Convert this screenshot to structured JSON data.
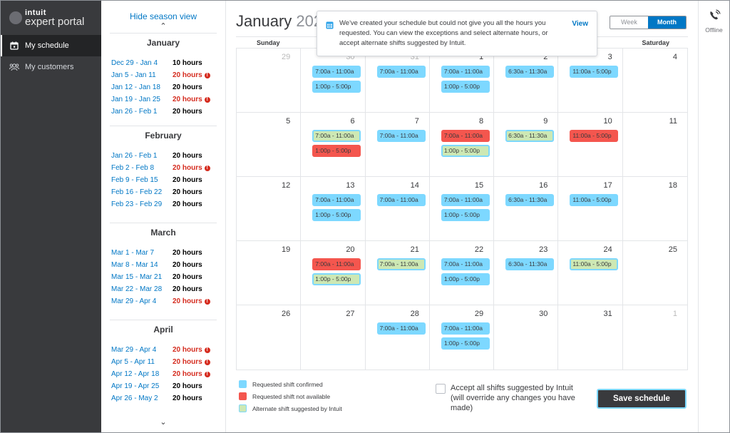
{
  "brand": {
    "top": "intuit",
    "bottom": "expert portal"
  },
  "nav": {
    "items": [
      {
        "label": "My schedule",
        "icon": "calendar-icon",
        "active": true
      },
      {
        "label": "My customers",
        "icon": "people-icon",
        "active": false
      }
    ]
  },
  "season": {
    "hide_label": "Hide season view",
    "months": [
      {
        "name": "January",
        "weeks": [
          {
            "range": "Dec 29 - Jan 4",
            "hours": "10 hours",
            "warn": false
          },
          {
            "range": "Jan 5 - Jan 11",
            "hours": "20 hours",
            "warn": true
          },
          {
            "range": "Jan 12 - Jan 18",
            "hours": "20 hours",
            "warn": false
          },
          {
            "range": "Jan 19 - Jan 25",
            "hours": "20 hours",
            "warn": true
          },
          {
            "range": "Jan 26 - Feb 1",
            "hours": "20 hours",
            "warn": false
          }
        ]
      },
      {
        "name": "February",
        "weeks": [
          {
            "range": "Jan 26 - Feb 1",
            "hours": "20 hours",
            "warn": false
          },
          {
            "range": "Feb 2 - Feb 8",
            "hours": "20 hours",
            "warn": true
          },
          {
            "range": "Feb 9 - Feb 15",
            "hours": "20 hours",
            "warn": false
          },
          {
            "range": "Feb 16 - Feb 22",
            "hours": "20 hours",
            "warn": false
          },
          {
            "range": "Feb 23 - Feb 29",
            "hours": "20 hours",
            "warn": false
          }
        ]
      },
      {
        "name": "March",
        "weeks": [
          {
            "range": "Mar 1 - Mar 7",
            "hours": "20 hours",
            "warn": false
          },
          {
            "range": "Mar 8 - Mar 14",
            "hours": "20 hours",
            "warn": false
          },
          {
            "range": "Mar 15 - Mar 21",
            "hours": "20 hours",
            "warn": false
          },
          {
            "range": "Mar 22 - Mar 28",
            "hours": "20 hours",
            "warn": false
          },
          {
            "range": "Mar 29 - Apr 4",
            "hours": "20 hours",
            "warn": true
          }
        ]
      },
      {
        "name": "April",
        "weeks": [
          {
            "range": "Mar 29 - Apr 4",
            "hours": "20 hours",
            "warn": true
          },
          {
            "range": "Apr 5 - Apr 11",
            "hours": "20 hours",
            "warn": true
          },
          {
            "range": "Apr 12 - Apr 18",
            "hours": "20 hours",
            "warn": true
          },
          {
            "range": "Apr 19 - Apr 25",
            "hours": "20 hours",
            "warn": false
          },
          {
            "range": "Apr 26 - May 2",
            "hours": "20 hours",
            "warn": false
          }
        ]
      }
    ]
  },
  "calendar": {
    "title_month": "January",
    "title_year_partial": "202",
    "behind_link_partial": "ge",
    "view_toggle": {
      "week": "Week",
      "month": "Month",
      "selected": "Month"
    },
    "days_of_week": [
      "Sunday",
      "",
      "",
      "",
      "",
      "",
      "Saturday"
    ],
    "weeks": [
      [
        {
          "num": "29",
          "muted": true,
          "shifts": []
        },
        {
          "num": "30",
          "muted": true,
          "shifts": [
            {
              "t": "7:00a - 11:00a",
              "s": "confirmed"
            },
            {
              "t": "1:00p - 5:00p",
              "s": "confirmed"
            }
          ]
        },
        {
          "num": "31",
          "muted": true,
          "shifts": [
            {
              "t": "7:00a - 11:00a",
              "s": "confirmed"
            }
          ]
        },
        {
          "num": "1",
          "muted": false,
          "shifts": [
            {
              "t": "7:00a - 11:00a",
              "s": "confirmed"
            },
            {
              "t": "1:00p - 5:00p",
              "s": "confirmed"
            }
          ]
        },
        {
          "num": "2",
          "muted": false,
          "shifts": [
            {
              "t": "6:30a - 11:30a",
              "s": "confirmed"
            }
          ]
        },
        {
          "num": "3",
          "muted": false,
          "shifts": [
            {
              "t": "11:00a - 5:00p",
              "s": "confirmed"
            }
          ]
        },
        {
          "num": "4",
          "muted": false,
          "shifts": []
        }
      ],
      [
        {
          "num": "5",
          "muted": false,
          "shifts": []
        },
        {
          "num": "6",
          "muted": false,
          "shifts": [
            {
              "t": "7:00a - 11:00a",
              "s": "alternate"
            },
            {
              "t": "1:00p - 5:00p",
              "s": "unavailable"
            }
          ]
        },
        {
          "num": "7",
          "muted": false,
          "shifts": [
            {
              "t": "7:00a - 11:00a",
              "s": "confirmed"
            }
          ]
        },
        {
          "num": "8",
          "muted": false,
          "shifts": [
            {
              "t": "7:00a - 11:00a",
              "s": "unavailable"
            },
            {
              "t": "1:00p - 5:00p",
              "s": "alternate"
            }
          ]
        },
        {
          "num": "9",
          "muted": false,
          "shifts": [
            {
              "t": "6:30a - 11:30a",
              "s": "alternate"
            }
          ]
        },
        {
          "num": "10",
          "muted": false,
          "shifts": [
            {
              "t": "11:00a - 5:00p",
              "s": "unavailable"
            }
          ]
        },
        {
          "num": "11",
          "muted": false,
          "shifts": []
        }
      ],
      [
        {
          "num": "12",
          "muted": false,
          "shifts": []
        },
        {
          "num": "13",
          "muted": false,
          "shifts": [
            {
              "t": "7:00a - 11:00a",
              "s": "confirmed"
            },
            {
              "t": "1:00p - 5:00p",
              "s": "confirmed"
            }
          ]
        },
        {
          "num": "14",
          "muted": false,
          "shifts": [
            {
              "t": "7:00a - 11:00a",
              "s": "confirmed"
            }
          ]
        },
        {
          "num": "15",
          "muted": false,
          "shifts": [
            {
              "t": "7:00a - 11:00a",
              "s": "confirmed"
            },
            {
              "t": "1:00p - 5:00p",
              "s": "confirmed"
            }
          ]
        },
        {
          "num": "16",
          "muted": false,
          "shifts": [
            {
              "t": "6:30a - 11:30a",
              "s": "confirmed"
            }
          ]
        },
        {
          "num": "17",
          "muted": false,
          "shifts": [
            {
              "t": "11:00a - 5:00p",
              "s": "confirmed"
            }
          ]
        },
        {
          "num": "18",
          "muted": false,
          "shifts": []
        }
      ],
      [
        {
          "num": "19",
          "muted": false,
          "shifts": []
        },
        {
          "num": "20",
          "muted": false,
          "shifts": [
            {
              "t": "7:00a - 11:00a",
              "s": "unavailable"
            },
            {
              "t": "1:00p - 5:00p",
              "s": "alternate"
            }
          ]
        },
        {
          "num": "21",
          "muted": false,
          "shifts": [
            {
              "t": "7:00a - 11:00a",
              "s": "alternate"
            }
          ]
        },
        {
          "num": "22",
          "muted": false,
          "shifts": [
            {
              "t": "7:00a - 11:00a",
              "s": "confirmed"
            },
            {
              "t": "1:00p - 5:00p",
              "s": "confirmed"
            }
          ]
        },
        {
          "num": "23",
          "muted": false,
          "shifts": [
            {
              "t": "6:30a - 11:30a",
              "s": "confirmed"
            }
          ]
        },
        {
          "num": "24",
          "muted": false,
          "shifts": [
            {
              "t": "11:00a - 5:00p",
              "s": "alternate"
            }
          ]
        },
        {
          "num": "25",
          "muted": false,
          "shifts": []
        }
      ],
      [
        {
          "num": "26",
          "muted": false,
          "shifts": []
        },
        {
          "num": "27",
          "muted": false,
          "shifts": []
        },
        {
          "num": "28",
          "muted": false,
          "shifts": [
            {
              "t": "7:00a - 11:00a",
              "s": "confirmed"
            }
          ]
        },
        {
          "num": "29",
          "muted": false,
          "shifts": [
            {
              "t": "7:00a - 11:00a",
              "s": "confirmed"
            },
            {
              "t": "1:00p - 5:00p",
              "s": "confirmed"
            }
          ]
        },
        {
          "num": "30",
          "muted": false,
          "shifts": []
        },
        {
          "num": "31",
          "muted": false,
          "shifts": []
        },
        {
          "num": "1",
          "muted": true,
          "shifts": []
        }
      ]
    ]
  },
  "toast": {
    "message": "We've created your schedule but could not give you all the hours you requested. You can view the exceptions and select alternate hours, or accept alternate shifts suggested by Intuit.",
    "action": "View"
  },
  "legend": [
    {
      "label": "Requested shift confirmed",
      "status": "confirmed"
    },
    {
      "label": "Requested shift not available",
      "status": "unavailable"
    },
    {
      "label": "Alternate shift suggested by Intuit",
      "status": "alternate"
    }
  ],
  "footer": {
    "accept_label": "Accept all shifts suggested by Intuit (will override any changes you have made)",
    "accept_checked": false,
    "save_label": "Save schedule"
  },
  "rail": {
    "status_label": "Offline"
  },
  "colors": {
    "accent": "#0077c5",
    "confirmed": "#7dd8ff",
    "unavailable": "#f4564e",
    "alternate": "#cde8b4",
    "warning": "#d52b1e",
    "nav_bg": "#393a3d"
  }
}
